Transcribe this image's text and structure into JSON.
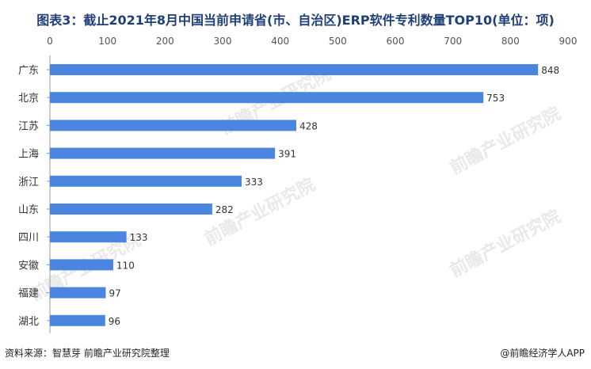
{
  "title": "图表3：截止2021年8月中国当前申请省(市、自治区)ERP软件专利数量TOP10(单位：项)",
  "source": "资料来源：智慧芽 前瞻产业研究院整理",
  "credit": "@前瞻经济学人APP",
  "watermark": "前瞻产业研究院",
  "colors": {
    "bar": "#4a86e0",
    "title": "#1f3f79",
    "axis": "#999999"
  },
  "chart_data": {
    "type": "bar",
    "orientation": "horizontal",
    "categories": [
      "广东",
      "北京",
      "江苏",
      "上海",
      "浙江",
      "山东",
      "四川",
      "安徽",
      "福建",
      "湖北"
    ],
    "values": [
      848,
      753,
      428,
      391,
      333,
      282,
      133,
      110,
      97,
      96
    ],
    "xlim": [
      0,
      900
    ],
    "x_ticks": [
      "0",
      "100",
      "200",
      "300",
      "400",
      "500",
      "600",
      "700",
      "800",
      "900"
    ],
    "x_axis_position": "top",
    "grid": false,
    "legend": "none",
    "data_labels": true
  }
}
